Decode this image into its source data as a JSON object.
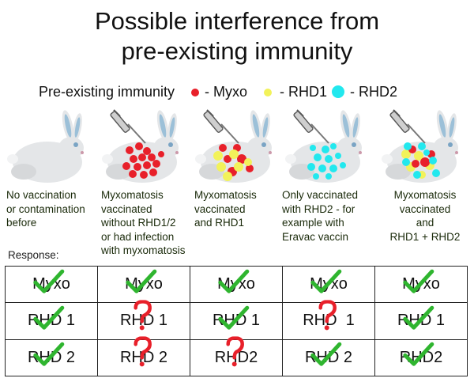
{
  "title": {
    "line1": "Possible interference from",
    "line2": "pre-existing immunity"
  },
  "legend": {
    "label": "Pre-existing immunity",
    "items": [
      {
        "text": "- Myxo",
        "color": "#e8202a"
      },
      {
        "text": "- RHD1",
        "color": "#f2f25a"
      },
      {
        "text": "- RHD2",
        "color": "#22e8ee"
      }
    ]
  },
  "scenarios": [
    {
      "caption": [
        "No vaccination",
        "or contamination",
        "before"
      ]
    },
    {
      "caption": [
        "Myxomatosis",
        "vaccinated",
        "without RHD1/2",
        "or had infection",
        "with myxomatosis"
      ]
    },
    {
      "caption": [
        "Myxomatosis",
        "vaccinated",
        "and RHD1"
      ]
    },
    {
      "caption": [
        "Only vaccinated",
        "with RHD2 - for",
        "example with",
        "Eravac vaccin"
      ]
    },
    {
      "caption": [
        "Myxomatosis",
        "vaccinated",
        "and",
        "RHD1 + RHD2"
      ]
    }
  ],
  "response_label": "Response:",
  "table": {
    "rows": [
      {
        "cells": [
          {
            "text": "Myxo",
            "mark": "check"
          },
          {
            "text": "Myxo",
            "mark": "check"
          },
          {
            "text": "Myxo",
            "mark": "check"
          },
          {
            "text": "Myxo",
            "mark": "check"
          },
          {
            "text": "Myxo",
            "mark": "check"
          }
        ]
      },
      {
        "cells": [
          {
            "text": "RHD 1",
            "mark": "check"
          },
          {
            "text": "RHD 1",
            "mark": "question"
          },
          {
            "text": "RHD 1",
            "mark": "check"
          },
          {
            "text": "RHD  1",
            "mark": "question"
          },
          {
            "text": "RHD 1",
            "mark": "check"
          }
        ]
      },
      {
        "cells": [
          {
            "text": "RHD 2",
            "mark": "check"
          },
          {
            "text": "RHD 2",
            "mark": "question"
          },
          {
            "text": "RHD2",
            "mark": "question"
          },
          {
            "text": "RHD 2",
            "mark": "check"
          },
          {
            "text": "RHD2",
            "mark": "check"
          }
        ]
      }
    ]
  },
  "colors": {
    "check": "#2fb52f",
    "question": "#e8202a",
    "rabbit_body": "#e4e6e8",
    "ear_inner": "#9cc0d8"
  }
}
